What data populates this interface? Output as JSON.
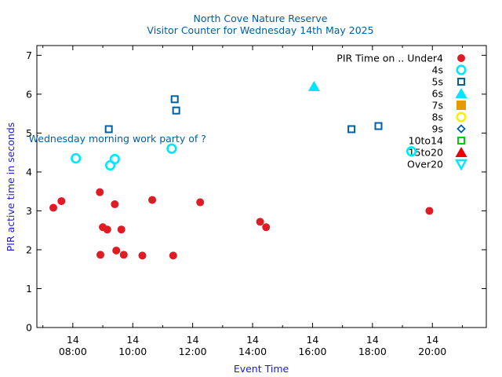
{
  "chart_data": {
    "type": "scatter",
    "title": "North Cove Nature Reserve",
    "subtitle": "Visitor Counter for Wednesday 14th May 2025",
    "xlabel": "Event Time",
    "ylabel": "PIR active time in seconds",
    "xlim": [
      6.8,
      21.8
    ],
    "ylim": [
      0,
      7.25
    ],
    "x_ticks": [
      {
        "value": 8,
        "day": "14",
        "time": "08:00"
      },
      {
        "value": 10,
        "day": "14",
        "time": "10:00"
      },
      {
        "value": 12,
        "day": "14",
        "time": "12:00"
      },
      {
        "value": 14,
        "day": "14",
        "time": "14:00"
      },
      {
        "value": 16,
        "day": "14",
        "time": "16:00"
      },
      {
        "value": 18,
        "day": "14",
        "time": "18:00"
      },
      {
        "value": 20,
        "day": "14",
        "time": "20:00"
      }
    ],
    "x_minor_ticks": [
      7,
      9,
      11,
      13,
      15,
      17,
      19,
      21
    ],
    "y_ticks": [
      0,
      1,
      2,
      3,
      4,
      5,
      6,
      7
    ],
    "legend_title": "PIR Time on ..",
    "legend_position": "top-right",
    "annotation": {
      "text": "Wednesday morning work party of ?",
      "x": 8.1,
      "y": 4.86
    },
    "series": [
      {
        "name": "Under4",
        "color": "#dd1c24",
        "marker": "filled-circle",
        "points": [
          [
            7.35,
            3.08
          ],
          [
            7.62,
            3.25
          ],
          [
            8.9,
            3.48
          ],
          [
            9.0,
            2.58
          ],
          [
            9.15,
            2.52
          ],
          [
            9.4,
            3.17
          ],
          [
            9.62,
            2.52
          ],
          [
            9.45,
            1.98
          ],
          [
            8.92,
            1.87
          ],
          [
            9.7,
            1.87
          ],
          [
            10.32,
            1.85
          ],
          [
            10.65,
            3.28
          ],
          [
            11.35,
            1.85
          ],
          [
            12.25,
            3.22
          ],
          [
            14.25,
            2.72
          ],
          [
            14.45,
            2.58
          ],
          [
            19.9,
            3.0
          ]
        ]
      },
      {
        "name": "4s",
        "color": "#00e6ff",
        "marker": "open-circle",
        "points": [
          [
            8.1,
            4.35
          ],
          [
            9.25,
            4.17
          ],
          [
            9.4,
            4.33
          ],
          [
            11.3,
            4.6
          ],
          [
            19.3,
            4.53
          ]
        ]
      },
      {
        "name": "5s",
        "color": "#005fa0",
        "marker": "open-square",
        "points": [
          [
            9.2,
            5.1
          ],
          [
            11.4,
            5.87
          ],
          [
            11.45,
            5.58
          ],
          [
            17.3,
            5.1
          ],
          [
            18.2,
            5.18
          ]
        ]
      },
      {
        "name": "6s",
        "color": "#00e6ff",
        "marker": "filled-triangle",
        "points": [
          [
            16.05,
            6.2
          ]
        ]
      },
      {
        "name": "7s",
        "color": "#e69a00",
        "marker": "filled-square",
        "points": []
      },
      {
        "name": "8s",
        "color": "#ffee00",
        "marker": "open-circle",
        "points": []
      },
      {
        "name": "9s",
        "color": "#005fa0",
        "marker": "open-diamond",
        "points": []
      },
      {
        "name": "10to14",
        "color": "#00cc00",
        "marker": "open-square",
        "points": []
      },
      {
        "name": "15to20",
        "color": "#ee0000",
        "marker": "filled-triangle",
        "points": []
      },
      {
        "name": "Over20",
        "color": "#00e6ff",
        "marker": "open-triangle-down",
        "points": []
      }
    ]
  }
}
